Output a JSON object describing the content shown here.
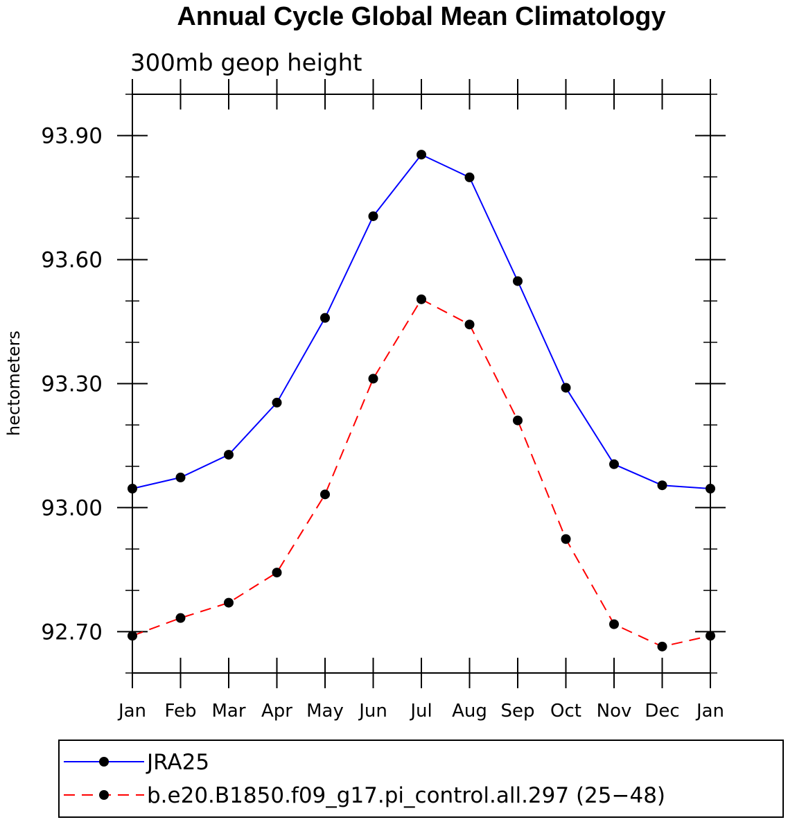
{
  "chart_data": {
    "type": "line",
    "title": "Annual Cycle Global Mean Climatology",
    "subtitle": "300mb geop height",
    "xlabel": "",
    "ylabel": "hectometers",
    "categories": [
      "Jan",
      "Feb",
      "Mar",
      "Apr",
      "May",
      "Jun",
      "Jul",
      "Aug",
      "Sep",
      "Oct",
      "Nov",
      "Dec",
      "Jan"
    ],
    "ylim": [
      92.6,
      94.0
    ],
    "yticks": [
      "93.90",
      "93.60",
      "93.30",
      "93.00",
      "92.70"
    ],
    "ytick_values": [
      93.9,
      93.6,
      93.3,
      93.0,
      92.7
    ],
    "grid": false,
    "legend_placement": "bottom",
    "series": [
      {
        "name": "JRA25",
        "color": "#0000ff",
        "style": "solid",
        "values": [
          93.046,
          93.073,
          93.128,
          93.254,
          93.459,
          93.705,
          93.854,
          93.799,
          93.548,
          93.29,
          93.105,
          93.054,
          93.046
        ]
      },
      {
        "name": "b.e20.B1850.f09_g17.pi_control.all.297 (25−48)",
        "color": "#ff0000",
        "style": "dashed",
        "values": [
          92.69,
          92.733,
          92.77,
          92.843,
          93.032,
          93.312,
          93.504,
          93.443,
          93.211,
          92.924,
          92.718,
          92.664,
          92.69
        ]
      }
    ]
  }
}
